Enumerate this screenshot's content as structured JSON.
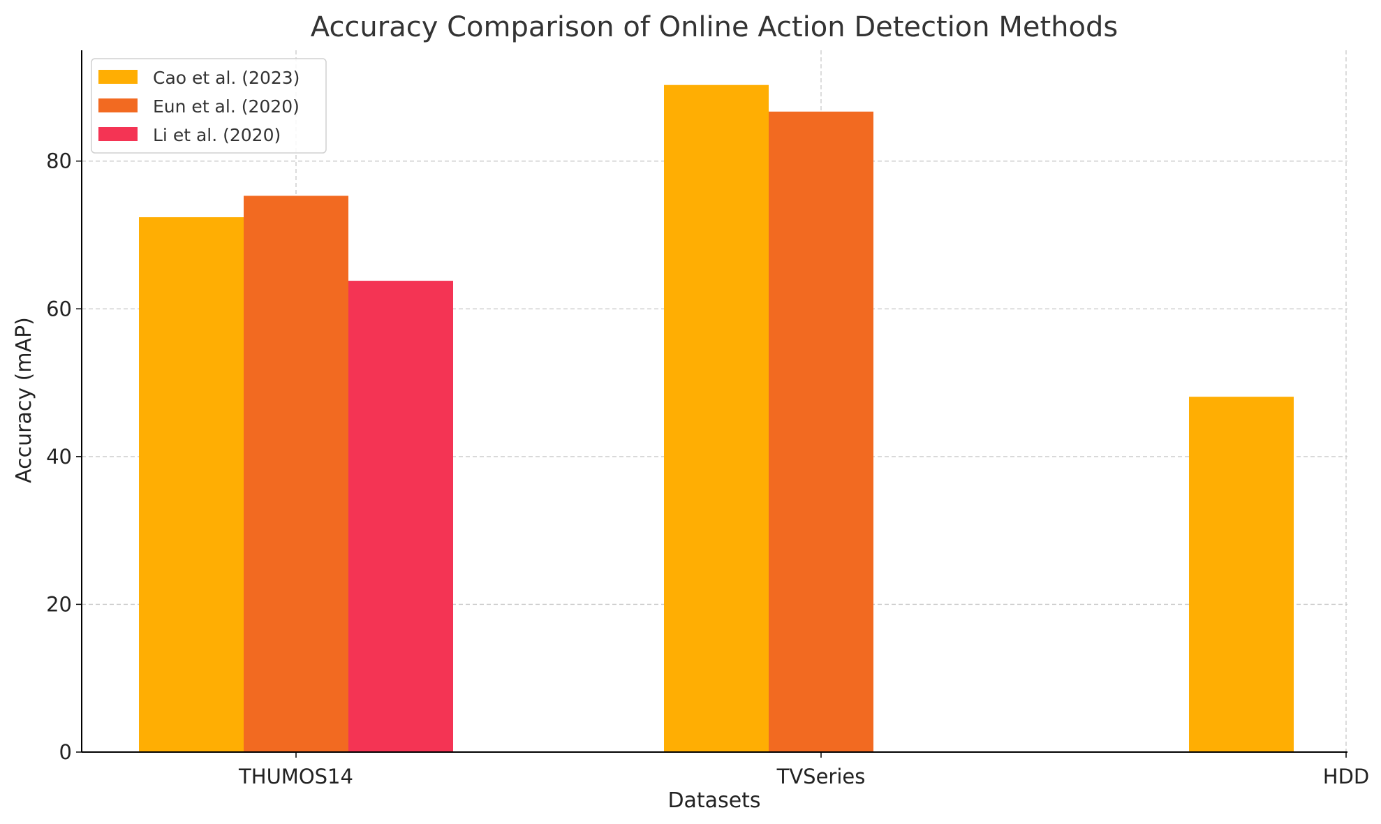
{
  "chart_data": {
    "type": "bar",
    "title": "Accuracy Comparison of Online Action Detection Methods",
    "xlabel": "Datasets",
    "ylabel": "Accuracy (mAP)",
    "categories": [
      "THUMOS14",
      "TVSeries",
      "HDD"
    ],
    "ylim": [
      0,
      95
    ],
    "yticks": [
      0,
      20,
      40,
      60,
      80
    ],
    "grid": true,
    "legend_position": "top-left",
    "series": [
      {
        "name": "Cao et al. (2023)",
        "color": "#FFAE03",
        "values": [
          72.4,
          90.3,
          48.1
        ]
      },
      {
        "name": "Eun et al. (2020)",
        "color": "#F26A21",
        "values": [
          75.3,
          86.7,
          null
        ]
      },
      {
        "name": "Li et al. (2020)",
        "color": "#F43454",
        "values": [
          63.8,
          null,
          null
        ]
      }
    ]
  }
}
